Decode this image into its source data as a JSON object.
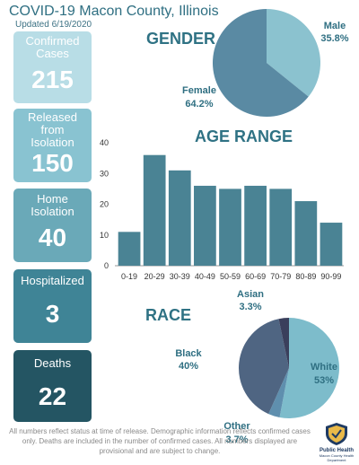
{
  "header": {
    "title": "COVID-19 Macon County, Illinois",
    "updated": "Updated 6/19/2020"
  },
  "stats": [
    {
      "label": "Confirmed Cases",
      "value": "215",
      "color": "#b8dde6"
    },
    {
      "label": "Released from Isolation",
      "value": "150",
      "color": "#89c3d1"
    },
    {
      "label": "Home Isolation",
      "value": "40",
      "color": "#6aa9b8"
    },
    {
      "label": "Hospitalized",
      "value": "3",
      "color": "#3f8496"
    },
    {
      "label": "Deaths",
      "value": "22",
      "color": "#245563"
    }
  ],
  "footnote": "All numbers reflect status at time of release. Demographic information reflects confirmed cases only. Deaths are included in the number of confirmed cases. All numbers displayed are provisional and are subject to change.",
  "logo": {
    "name": "Public Health",
    "subtitle": "Macon County Health Department",
    "icon": "shield-icon"
  },
  "chart_data": [
    {
      "type": "pie",
      "title": "GENDER",
      "slices": [
        {
          "label": "Male",
          "value": 35.8,
          "value_label": "35.8%",
          "color": "#8bc2cf"
        },
        {
          "label": "Female",
          "value": 64.2,
          "value_label": "64.2%",
          "color": "#5a8aa3"
        }
      ]
    },
    {
      "type": "bar",
      "title": "AGE RANGE",
      "categories": [
        "0-19",
        "20-29",
        "30-39",
        "40-49",
        "50-59",
        "60-69",
        "70-79",
        "80-89",
        "90-99"
      ],
      "values": [
        11,
        36,
        31,
        26,
        25,
        26,
        25,
        21,
        14
      ],
      "ylim": [
        0,
        40
      ],
      "yticks": [
        0,
        10,
        20,
        30,
        40
      ],
      "grid": false,
      "color": "#4a8394"
    },
    {
      "type": "pie",
      "title": "RACE",
      "slices": [
        {
          "label": "White",
          "value": 53,
          "value_label": "53%",
          "color": "#7dbccb"
        },
        {
          "label": "Other",
          "value": 3.7,
          "value_label": "3.7%",
          "color": "#5f8fae"
        },
        {
          "label": "Black",
          "value": 40,
          "value_label": "40%",
          "color": "#4f6582"
        },
        {
          "label": "Asian",
          "value": 3.3,
          "value_label": "3.3%",
          "color": "#3a3f5c"
        }
      ]
    }
  ]
}
